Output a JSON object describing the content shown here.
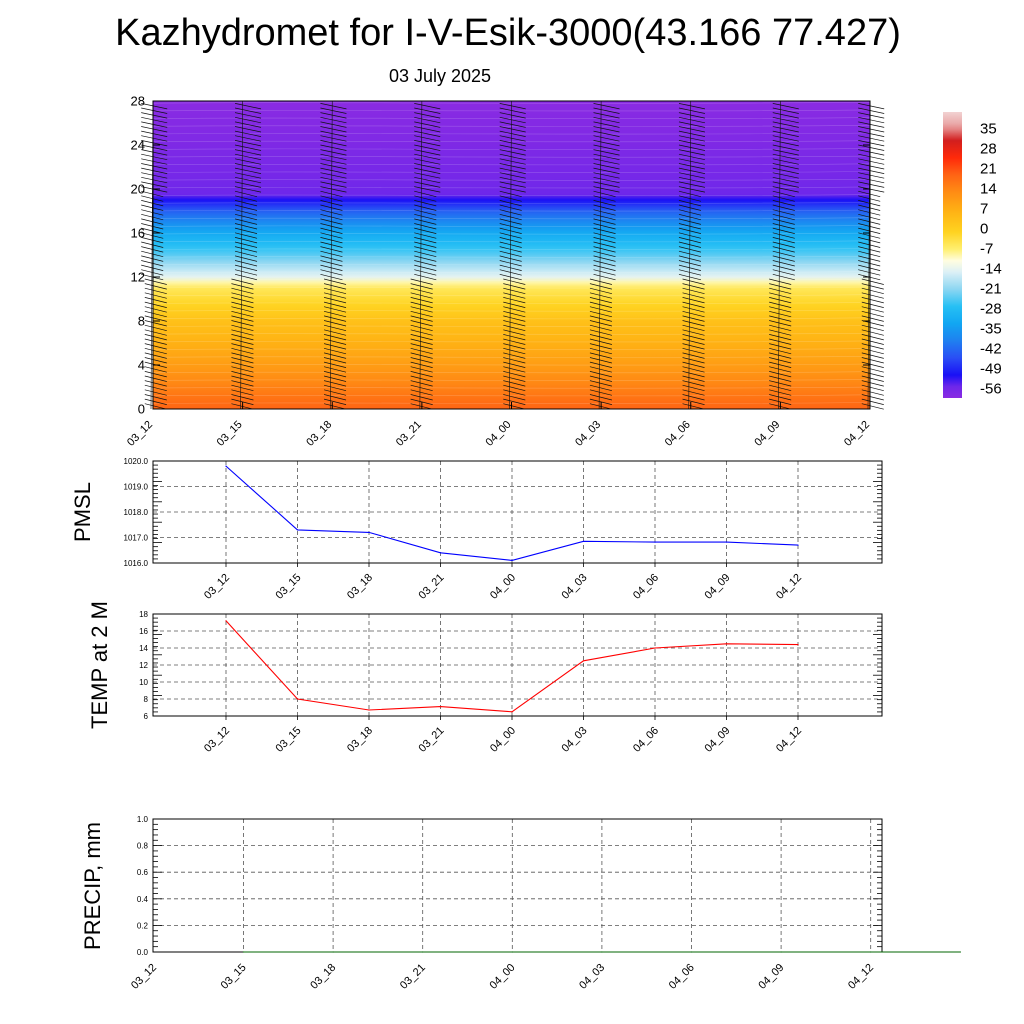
{
  "header": {
    "title": "Kazhydromet for I-V-Esik-3000(43.166 77.427)",
    "subtitle": "03 July 2025"
  },
  "colors": {
    "pmsl_line": "#0000ff",
    "temp_line": "#ff0000",
    "precip_line": "#006400",
    "grid": "#555555"
  },
  "chart_data": [
    {
      "type": "heatmap",
      "name": "vertical temperature cross-section with wind barbs",
      "x_tick_labels": [
        "03_12",
        "03_15",
        "03_18",
        "03_21",
        "04_00",
        "04_03",
        "04_06",
        "04_09",
        "04_12"
      ],
      "y_tick_labels": [
        "0",
        "4",
        "8",
        "12",
        "16",
        "20",
        "24",
        "28"
      ],
      "ylim": [
        0,
        28
      ],
      "colorbar_labels": [
        "35",
        "28",
        "21",
        "14",
        "7",
        "0",
        "-7",
        "-14",
        "-21",
        "-28",
        "-35",
        "-42",
        "-49",
        "-56"
      ],
      "colorbar_range": [
        -60,
        40
      ],
      "colormap": [
        {
          "v": -60,
          "c": "#8a2be2"
        },
        {
          "v": -56,
          "c": "#6e27ea"
        },
        {
          "v": -52,
          "c": "#1a10f5"
        },
        {
          "v": -46,
          "c": "#2a4ef5"
        },
        {
          "v": -40,
          "c": "#1f80f0"
        },
        {
          "v": -34,
          "c": "#11a6f2"
        },
        {
          "v": -28,
          "c": "#26c0f4"
        },
        {
          "v": -22,
          "c": "#8cd6f2"
        },
        {
          "v": -16,
          "c": "#dcf0f6"
        },
        {
          "v": -12,
          "c": "#fffde0"
        },
        {
          "v": -8,
          "c": "#ffef70"
        },
        {
          "v": -2,
          "c": "#ffd320"
        },
        {
          "v": 5,
          "c": "#ffb414"
        },
        {
          "v": 12,
          "c": "#ff8c14"
        },
        {
          "v": 18,
          "c": "#ff6414"
        },
        {
          "v": 24,
          "c": "#ff2a0a"
        },
        {
          "v": 30,
          "c": "#d21e1e"
        },
        {
          "v": 35,
          "c": "#e8a0a0"
        },
        {
          "v": 40,
          "c": "#f2d2d2"
        }
      ],
      "temperature_profile": [
        {
          "h": 0,
          "t": 18
        },
        {
          "h": 4,
          "t": 9
        },
        {
          "h": 8,
          "t": 2
        },
        {
          "h": 11.2,
          "t": -7
        },
        {
          "h": 12,
          "t": -15
        },
        {
          "h": 14,
          "t": -25
        },
        {
          "h": 16,
          "t": -33
        },
        {
          "h": 18,
          "t": -44
        },
        {
          "h": 19.5,
          "t": -56
        },
        {
          "h": 21,
          "t": -57
        },
        {
          "h": 28,
          "t": -60
        }
      ]
    },
    {
      "type": "line",
      "ylabel": "PMSL",
      "x": [
        "03_12",
        "03_15",
        "03_18",
        "03_21",
        "04_00",
        "04_03",
        "04_06",
        "04_09",
        "04_12"
      ],
      "values": [
        1019.8,
        1017.3,
        1017.2,
        1016.4,
        1016.1,
        1016.85,
        1016.82,
        1016.82,
        1016.7
      ],
      "ylim": [
        1016.0,
        1020.0
      ],
      "y_tick_labels": [
        "1016.0",
        "1017.0",
        "1018.0",
        "1019.0",
        "1020.0"
      ]
    },
    {
      "type": "line",
      "ylabel": "TEMP at 2 M",
      "x": [
        "03_12",
        "03_15",
        "03_18",
        "03_21",
        "04_00",
        "04_03",
        "04_06",
        "04_09",
        "04_12"
      ],
      "values": [
        17.2,
        8.0,
        6.7,
        7.1,
        6.5,
        12.5,
        14.0,
        14.5,
        14.4
      ],
      "ylim": [
        6,
        18
      ],
      "y_tick_labels": [
        "6",
        "8",
        "10",
        "12",
        "14",
        "16",
        "18"
      ]
    },
    {
      "type": "line",
      "ylabel": "PRECIP, mm",
      "x": [
        "03_12",
        "03_15",
        "03_18",
        "03_21",
        "04_00",
        "04_03",
        "04_06",
        "04_09",
        "04_12"
      ],
      "values": [
        0,
        0,
        0,
        0,
        0,
        0,
        0,
        0,
        0
      ],
      "ylim": [
        0.0,
        1.0
      ],
      "y_tick_labels": [
        "0.0",
        "0.2",
        "0.4",
        "0.6",
        "0.8",
        "1.0"
      ]
    }
  ]
}
